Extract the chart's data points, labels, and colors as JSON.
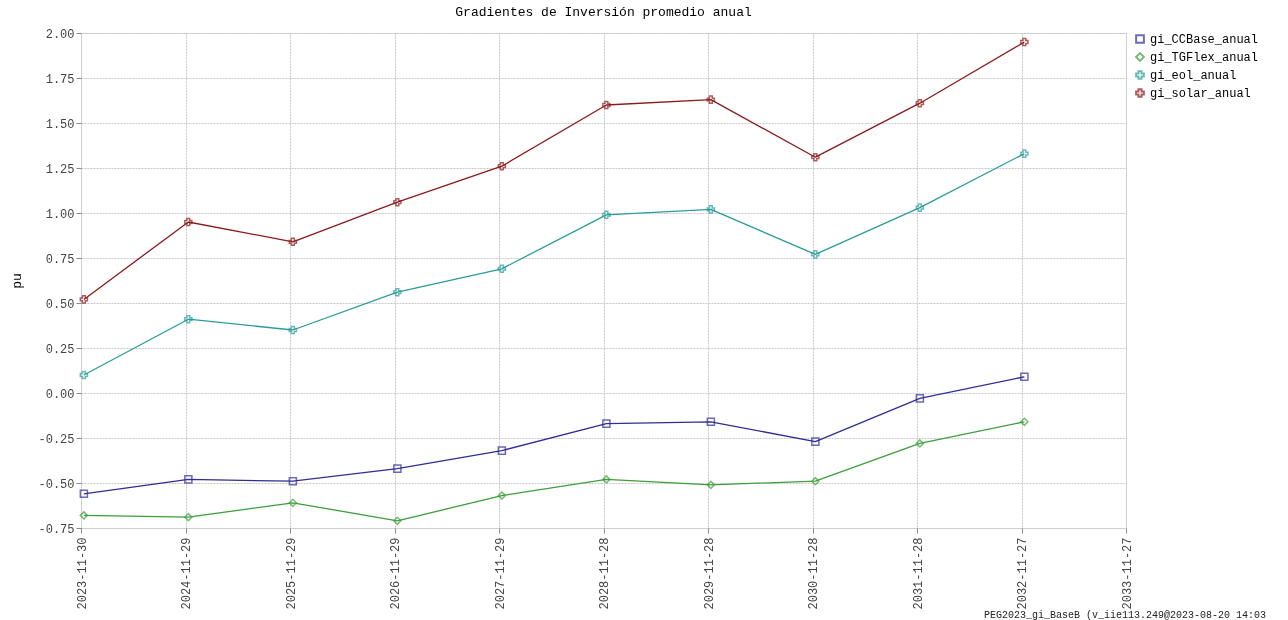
{
  "chart_data": {
    "type": "line",
    "title": "Gradientes de Inversión promedio anual",
    "ylabel": "pu",
    "x": [
      "2023-12-10",
      "2024-12-09",
      "2025-12-09",
      "2026-12-09",
      "2027-12-09",
      "2028-12-08",
      "2029-12-08",
      "2030-12-08",
      "2031-12-08",
      "2032-12-07"
    ],
    "series": [
      {
        "name": "gi_CCBase_anual",
        "color": "#2e2e96",
        "marker": "square",
        "values": [
          -0.56,
          -0.48,
          -0.49,
          -0.42,
          -0.32,
          -0.17,
          -0.16,
          -0.27,
          -0.03,
          0.09
        ]
      },
      {
        "name": "gi_TGFlex_anual",
        "color": "#3c9e3c",
        "marker": "diamond",
        "values": [
          -0.68,
          -0.69,
          -0.61,
          -0.71,
          -0.57,
          -0.48,
          -0.51,
          -0.49,
          -0.28,
          -0.16
        ]
      },
      {
        "name": "gi_eol_anual",
        "color": "#2a9d9a",
        "marker": "cross",
        "values": [
          0.1,
          0.41,
          0.35,
          0.56,
          0.69,
          0.99,
          1.02,
          0.77,
          1.03,
          1.33
        ]
      },
      {
        "name": "gi_solar_anual",
        "color": "#8b1a1a",
        "marker": "cross",
        "values": [
          0.52,
          0.95,
          0.84,
          1.06,
          1.26,
          1.6,
          1.63,
          1.31,
          1.61,
          1.95
        ]
      }
    ],
    "xlim": [
      "2023-11-30",
      "2033-11-27"
    ],
    "xticks": [
      "2023-11-30",
      "2024-11-29",
      "2025-11-29",
      "2026-11-29",
      "2027-11-29",
      "2028-11-28",
      "2029-11-28",
      "2030-11-28",
      "2031-11-28",
      "2032-11-27",
      "2033-11-27"
    ],
    "ylim": [
      -0.75,
      2.0
    ],
    "yticks": [
      {
        "value": -0.75,
        "label": "-0.75"
      },
      {
        "value": -0.5,
        "label": "-0.50"
      },
      {
        "value": -0.25,
        "label": "-0.25"
      },
      {
        "value": 0,
        "label": "0.00"
      },
      {
        "value": 0.25,
        "label": "0.25"
      },
      {
        "value": 0.5,
        "label": "0.50"
      },
      {
        "value": 0.75,
        "label": "0.75"
      },
      {
        "value": 1,
        "label": "1.00"
      },
      {
        "value": 1.25,
        "label": "1.25"
      },
      {
        "value": 1.5,
        "label": "1.50"
      },
      {
        "value": 1.75,
        "label": "1.75"
      },
      {
        "value": 2,
        "label": "2.00"
      }
    ],
    "grid": true,
    "legend": "top right",
    "line_style": "solid",
    "annotations": [
      "PEG2023_gi_BaseB (v_iie113.249@2023-08-20 14:03"
    ]
  }
}
